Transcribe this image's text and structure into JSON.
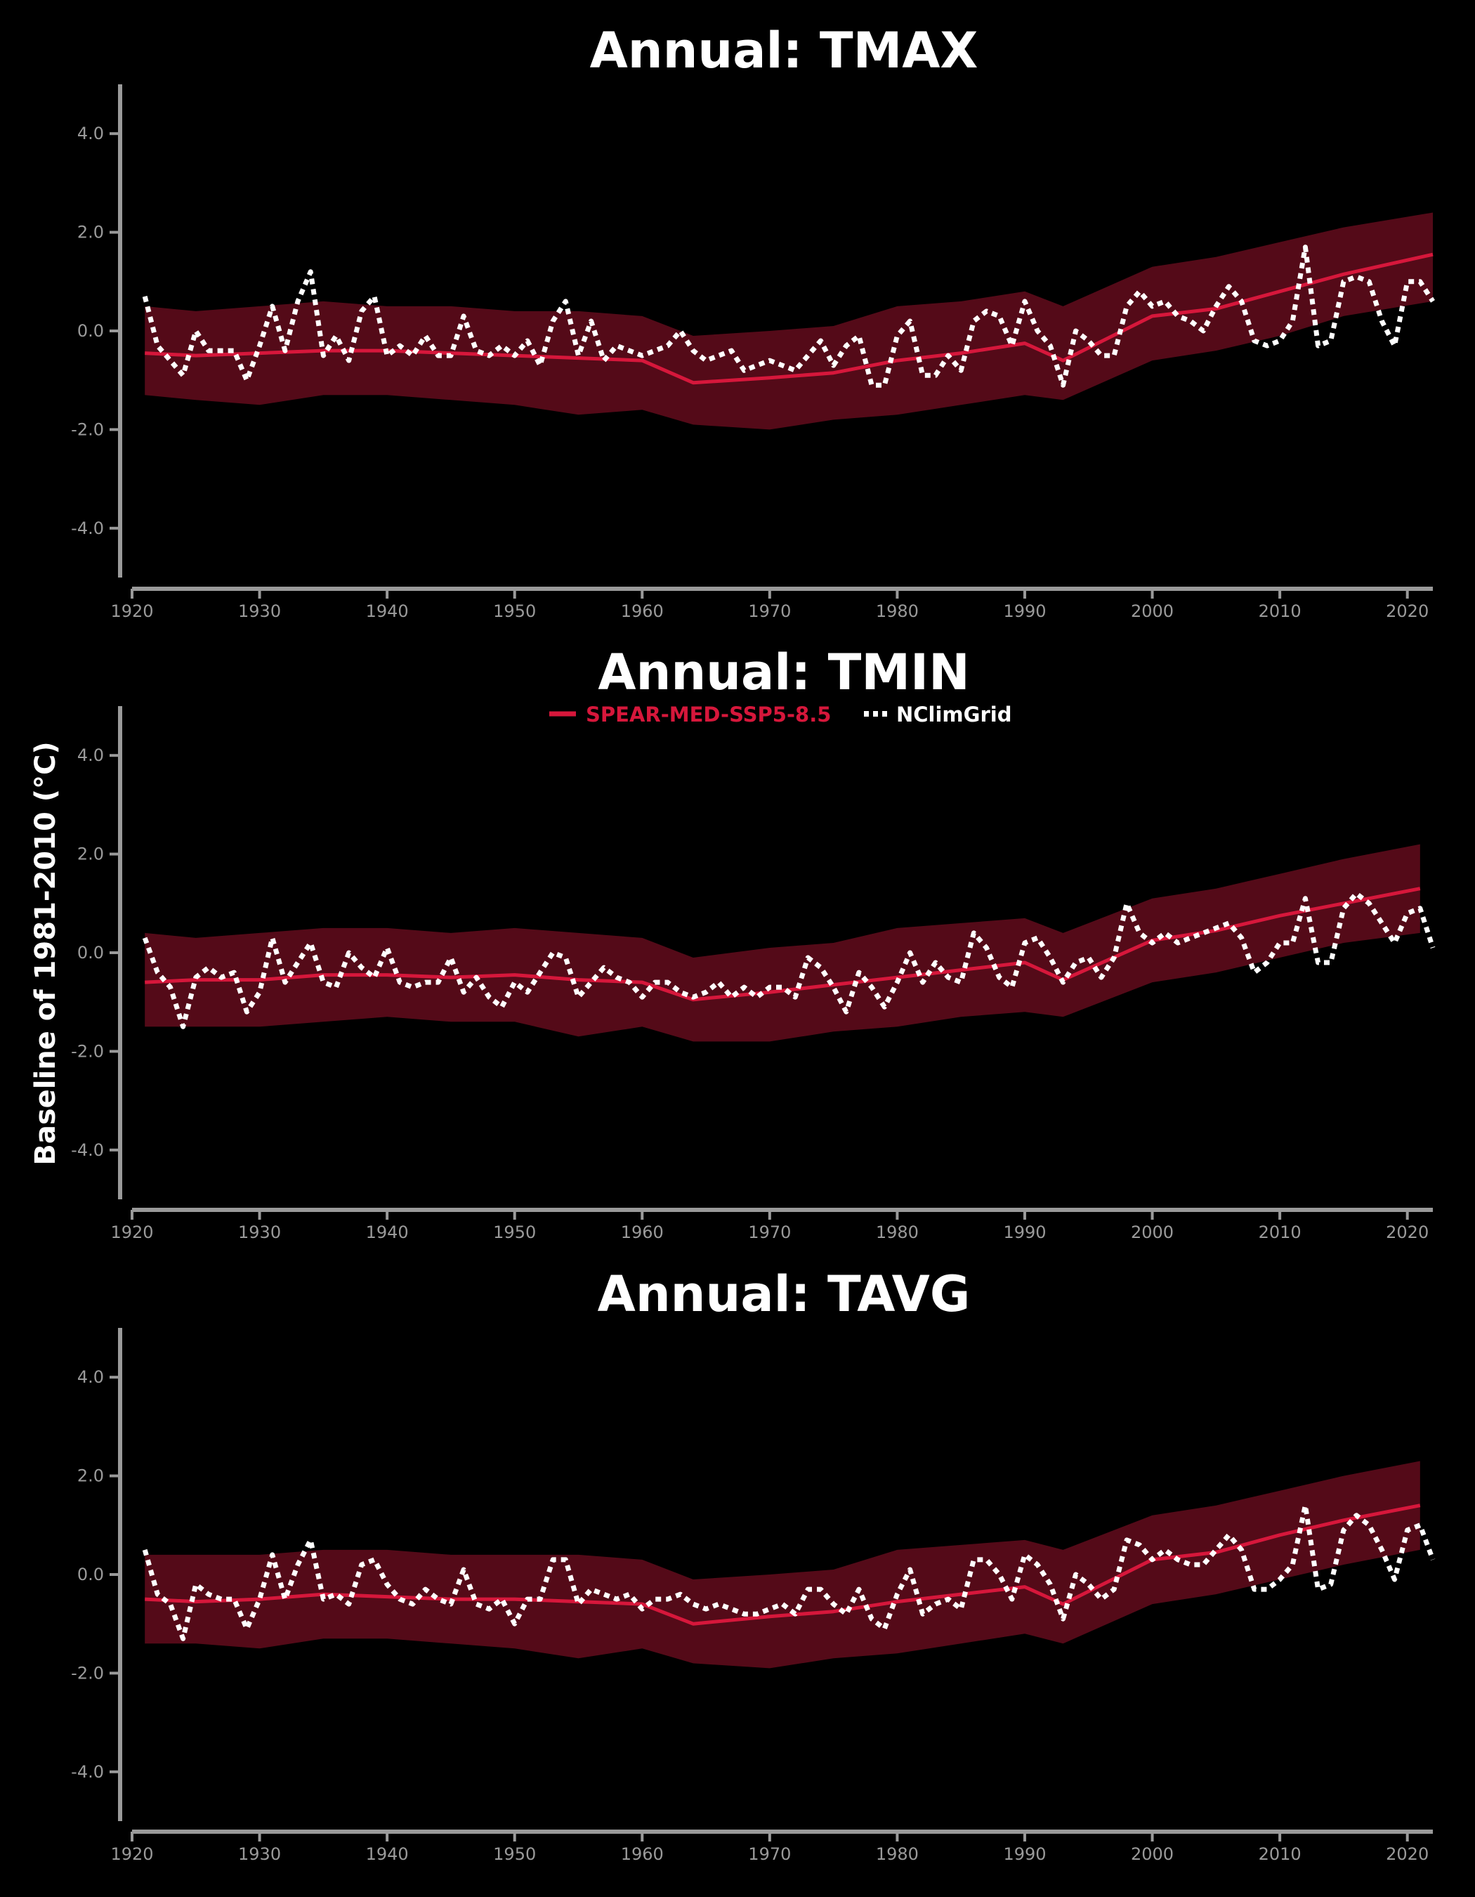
{
  "figure": {
    "ylabel": "Baseline of 1981-2010 (°C)",
    "legend": {
      "model_label": "SPEAR-MED-SSP5-8.5",
      "obs_label": "NClimGrid"
    },
    "colors": {
      "background": "#000000",
      "model_line": "#d6173b",
      "model_band": "#540a18",
      "obs_line": "#ffffff",
      "axis": "#9a9a9a"
    }
  },
  "chart_data": [
    {
      "type": "line",
      "title": "Annual: TMAX",
      "xlim": [
        1920,
        2022
      ],
      "ylim": [
        -5.0,
        5.0
      ],
      "xticks": [
        1920,
        1930,
        1940,
        1950,
        1960,
        1970,
        1980,
        1990,
        2000,
        2010,
        2020
      ],
      "yticks": [
        4.0,
        2.0,
        0.0,
        -2.0,
        -4.0
      ],
      "ytick_labels": [
        "4.0",
        "2.0",
        "0.0",
        "-2.0",
        "-4.0"
      ],
      "legend": null,
      "series": [
        {
          "name": "SPEAR-MED-SSP5-8.5",
          "style": "solid line with shaded ensemble range",
          "x": [
            1921,
            1925,
            1930,
            1935,
            1940,
            1945,
            1950,
            1955,
            1960,
            1964,
            1970,
            1975,
            1980,
            1985,
            1990,
            1993,
            2000,
            2005,
            2010,
            2015,
            2022
          ],
          "y": [
            -0.45,
            -0.5,
            -0.45,
            -0.4,
            -0.4,
            -0.45,
            -0.5,
            -0.55,
            -0.6,
            -1.05,
            -0.95,
            -0.85,
            -0.6,
            -0.45,
            -0.25,
            -0.6,
            0.3,
            0.45,
            0.8,
            1.15,
            1.55
          ],
          "lower": [
            -1.3,
            -1.4,
            -1.5,
            -1.3,
            -1.3,
            -1.4,
            -1.5,
            -1.7,
            -1.6,
            -1.9,
            -2.0,
            -1.8,
            -1.7,
            -1.5,
            -1.3,
            -1.4,
            -0.6,
            -0.4,
            -0.1,
            0.3,
            0.6
          ],
          "upper": [
            0.5,
            0.4,
            0.5,
            0.6,
            0.5,
            0.5,
            0.4,
            0.4,
            0.3,
            -0.1,
            0.0,
            0.1,
            0.5,
            0.6,
            0.8,
            0.5,
            1.3,
            1.5,
            1.8,
            2.1,
            2.4
          ]
        },
        {
          "name": "NClimGrid",
          "style": "dotted line",
          "x": [
            1921,
            1922,
            1923,
            1924,
            1925,
            1926,
            1927,
            1928,
            1929,
            1930,
            1931,
            1932,
            1933,
            1934,
            1935,
            1936,
            1937,
            1938,
            1939,
            1940,
            1941,
            1942,
            1943,
            1944,
            1945,
            1946,
            1947,
            1948,
            1949,
            1950,
            1951,
            1952,
            1953,
            1954,
            1955,
            1956,
            1957,
            1958,
            1959,
            1960,
            1961,
            1962,
            1963,
            1964,
            1965,
            1966,
            1967,
            1968,
            1969,
            1970,
            1971,
            1972,
            1973,
            1974,
            1975,
            1976,
            1977,
            1978,
            1979,
            1980,
            1981,
            1982,
            1983,
            1984,
            1985,
            1986,
            1987,
            1988,
            1989,
            1990,
            1991,
            1992,
            1993,
            1994,
            1995,
            1996,
            1997,
            1998,
            1999,
            2000,
            2001,
            2002,
            2003,
            2004,
            2005,
            2006,
            2007,
            2008,
            2009,
            2010,
            2011,
            2012,
            2013,
            2014,
            2015,
            2016,
            2017,
            2018,
            2019,
            2020,
            2021,
            2022
          ],
          "y": [
            0.7,
            -0.3,
            -0.6,
            -0.9,
            0.0,
            -0.4,
            -0.4,
            -0.4,
            -1.0,
            -0.3,
            0.5,
            -0.4,
            0.6,
            1.2,
            -0.5,
            -0.1,
            -0.6,
            0.4,
            0.7,
            -0.5,
            -0.3,
            -0.5,
            -0.1,
            -0.5,
            -0.5,
            0.3,
            -0.4,
            -0.5,
            -0.3,
            -0.5,
            -0.2,
            -0.7,
            0.2,
            0.6,
            -0.5,
            0.2,
            -0.6,
            -0.3,
            -0.4,
            -0.5,
            -0.4,
            -0.3,
            0.0,
            -0.4,
            -0.6,
            -0.5,
            -0.4,
            -0.8,
            -0.7,
            -0.6,
            -0.7,
            -0.8,
            -0.5,
            -0.2,
            -0.7,
            -0.3,
            -0.1,
            -1.1,
            -1.1,
            -0.1,
            0.2,
            -0.9,
            -0.9,
            -0.5,
            -0.8,
            0.2,
            0.4,
            0.3,
            -0.3,
            0.6,
            0.0,
            -0.3,
            -1.1,
            0.0,
            -0.2,
            -0.5,
            -0.5,
            0.5,
            0.8,
            0.5,
            0.6,
            0.3,
            0.2,
            0.0,
            0.5,
            0.9,
            0.6,
            -0.2,
            -0.3,
            -0.2,
            0.2,
            1.7,
            -0.3,
            -0.2,
            1.0,
            1.1,
            1.0,
            0.2,
            -0.3,
            1.0,
            1.0,
            0.6
          ]
        }
      ]
    },
    {
      "type": "line",
      "title": "Annual: TMIN",
      "xlim": [
        1920,
        2022
      ],
      "ylim": [
        -5.0,
        5.0
      ],
      "xticks": [
        1920,
        1930,
        1940,
        1950,
        1960,
        1970,
        1980,
        1990,
        2000,
        2010,
        2020
      ],
      "yticks": [
        4.0,
        2.0,
        0.0,
        -2.0,
        -4.0
      ],
      "ytick_labels": [
        "4.0",
        "2.0",
        "0.0",
        "-2.0",
        "-4.0"
      ],
      "legend": "top-center",
      "series": [
        {
          "name": "SPEAR-MED-SSP5-8.5",
          "style": "solid line with shaded ensemble range",
          "x": [
            1921,
            1925,
            1930,
            1935,
            1940,
            1945,
            1950,
            1955,
            1960,
            1964,
            1970,
            1975,
            1980,
            1985,
            1990,
            1993,
            2000,
            2005,
            2010,
            2015,
            2021
          ],
          "y": [
            -0.6,
            -0.55,
            -0.55,
            -0.45,
            -0.45,
            -0.5,
            -0.45,
            -0.55,
            -0.6,
            -0.95,
            -0.8,
            -0.65,
            -0.5,
            -0.35,
            -0.2,
            -0.55,
            0.25,
            0.45,
            0.75,
            1.0,
            1.3
          ],
          "lower": [
            -1.5,
            -1.5,
            -1.5,
            -1.4,
            -1.3,
            -1.4,
            -1.4,
            -1.7,
            -1.5,
            -1.8,
            -1.8,
            -1.6,
            -1.5,
            -1.3,
            -1.2,
            -1.3,
            -0.6,
            -0.4,
            -0.1,
            0.2,
            0.4
          ],
          "upper": [
            0.4,
            0.3,
            0.4,
            0.5,
            0.5,
            0.4,
            0.5,
            0.4,
            0.3,
            -0.1,
            0.1,
            0.2,
            0.5,
            0.6,
            0.7,
            0.4,
            1.1,
            1.3,
            1.6,
            1.9,
            2.2
          ]
        },
        {
          "name": "NClimGrid",
          "style": "dotted line",
          "x": [
            1921,
            1922,
            1923,
            1924,
            1925,
            1926,
            1927,
            1928,
            1929,
            1930,
            1931,
            1932,
            1933,
            1934,
            1935,
            1936,
            1937,
            1938,
            1939,
            1940,
            1941,
            1942,
            1943,
            1944,
            1945,
            1946,
            1947,
            1948,
            1949,
            1950,
            1951,
            1952,
            1953,
            1954,
            1955,
            1956,
            1957,
            1958,
            1959,
            1960,
            1961,
            1962,
            1963,
            1964,
            1965,
            1966,
            1967,
            1968,
            1969,
            1970,
            1971,
            1972,
            1973,
            1974,
            1975,
            1976,
            1977,
            1978,
            1979,
            1980,
            1981,
            1982,
            1983,
            1984,
            1985,
            1986,
            1987,
            1988,
            1989,
            1990,
            1991,
            1992,
            1993,
            1994,
            1995,
            1996,
            1997,
            1998,
            1999,
            2000,
            2001,
            2002,
            2003,
            2004,
            2005,
            2006,
            2007,
            2008,
            2009,
            2010,
            2011,
            2012,
            2013,
            2014,
            2015,
            2016,
            2017,
            2018,
            2019,
            2020,
            2021,
            2022
          ],
          "y": [
            0.3,
            -0.4,
            -0.7,
            -1.5,
            -0.5,
            -0.3,
            -0.5,
            -0.4,
            -1.2,
            -0.8,
            0.3,
            -0.6,
            -0.2,
            0.2,
            -0.6,
            -0.7,
            0.0,
            -0.3,
            -0.5,
            0.1,
            -0.6,
            -0.7,
            -0.6,
            -0.6,
            -0.1,
            -0.8,
            -0.5,
            -0.9,
            -1.1,
            -0.6,
            -0.8,
            -0.4,
            0.0,
            -0.1,
            -0.9,
            -0.6,
            -0.3,
            -0.5,
            -0.6,
            -0.9,
            -0.6,
            -0.6,
            -0.8,
            -0.9,
            -0.8,
            -0.6,
            -0.9,
            -0.7,
            -0.9,
            -0.7,
            -0.7,
            -0.9,
            -0.1,
            -0.3,
            -0.7,
            -1.2,
            -0.4,
            -0.7,
            -1.1,
            -0.6,
            0.0,
            -0.6,
            -0.2,
            -0.5,
            -0.6,
            0.4,
            0.1,
            -0.5,
            -0.7,
            0.2,
            0.3,
            -0.1,
            -0.6,
            -0.2,
            -0.1,
            -0.5,
            -0.1,
            1.0,
            0.4,
            0.2,
            0.4,
            0.2,
            0.3,
            0.4,
            0.5,
            0.6,
            0.3,
            -0.4,
            -0.2,
            0.2,
            0.2,
            1.1,
            -0.2,
            -0.2,
            0.9,
            1.2,
            1.0,
            0.6,
            0.2,
            0.8,
            0.9,
            0.1
          ]
        }
      ]
    },
    {
      "type": "line",
      "title": "Annual: TAVG",
      "xlim": [
        1920,
        2022
      ],
      "ylim": [
        -5.0,
        5.0
      ],
      "xticks": [
        1920,
        1930,
        1940,
        1950,
        1960,
        1970,
        1980,
        1990,
        2000,
        2010,
        2020
      ],
      "yticks": [
        4.0,
        2.0,
        0.0,
        -2.0,
        -4.0
      ],
      "ytick_labels": [
        "4.0",
        "2.0",
        "0.0",
        "-2.0",
        "-4.0"
      ],
      "legend": null,
      "series": [
        {
          "name": "SPEAR-MED-SSP5-8.5",
          "style": "solid line with shaded ensemble range",
          "x": [
            1921,
            1925,
            1930,
            1935,
            1940,
            1945,
            1950,
            1955,
            1960,
            1964,
            1970,
            1975,
            1980,
            1985,
            1990,
            1993,
            2000,
            2005,
            2010,
            2015,
            2021
          ],
          "y": [
            -0.5,
            -0.55,
            -0.5,
            -0.4,
            -0.45,
            -0.5,
            -0.5,
            -0.55,
            -0.6,
            -1.0,
            -0.85,
            -0.75,
            -0.55,
            -0.4,
            -0.25,
            -0.6,
            0.3,
            0.45,
            0.8,
            1.1,
            1.4
          ],
          "lower": [
            -1.4,
            -1.4,
            -1.5,
            -1.3,
            -1.3,
            -1.4,
            -1.5,
            -1.7,
            -1.5,
            -1.8,
            -1.9,
            -1.7,
            -1.6,
            -1.4,
            -1.2,
            -1.4,
            -0.6,
            -0.4,
            -0.1,
            0.2,
            0.5
          ],
          "upper": [
            0.4,
            0.4,
            0.4,
            0.5,
            0.5,
            0.4,
            0.4,
            0.4,
            0.3,
            -0.1,
            0.0,
            0.1,
            0.5,
            0.6,
            0.7,
            0.5,
            1.2,
            1.4,
            1.7,
            2.0,
            2.3
          ]
        },
        {
          "name": "NClimGrid",
          "style": "dotted line",
          "x": [
            1921,
            1922,
            1923,
            1924,
            1925,
            1926,
            1927,
            1928,
            1929,
            1930,
            1931,
            1932,
            1933,
            1934,
            1935,
            1936,
            1937,
            1938,
            1939,
            1940,
            1941,
            1942,
            1943,
            1944,
            1945,
            1946,
            1947,
            1948,
            1949,
            1950,
            1951,
            1952,
            1953,
            1954,
            1955,
            1956,
            1957,
            1958,
            1959,
            1960,
            1961,
            1962,
            1963,
            1964,
            1965,
            1966,
            1967,
            1968,
            1969,
            1970,
            1971,
            1972,
            1973,
            1974,
            1975,
            1976,
            1977,
            1978,
            1979,
            1980,
            1981,
            1982,
            1983,
            1984,
            1985,
            1986,
            1987,
            1988,
            1989,
            1990,
            1991,
            1992,
            1993,
            1994,
            1995,
            1996,
            1997,
            1998,
            1999,
            2000,
            2001,
            2002,
            2003,
            2004,
            2005,
            2006,
            2007,
            2008,
            2009,
            2010,
            2011,
            2012,
            2013,
            2014,
            2015,
            2016,
            2017,
            2018,
            2019,
            2020,
            2021,
            2022
          ],
          "y": [
            0.5,
            -0.4,
            -0.6,
            -1.3,
            -0.2,
            -0.4,
            -0.5,
            -0.5,
            -1.1,
            -0.5,
            0.4,
            -0.5,
            0.2,
            0.7,
            -0.5,
            -0.4,
            -0.6,
            0.2,
            0.3,
            -0.2,
            -0.5,
            -0.6,
            -0.3,
            -0.5,
            -0.6,
            0.1,
            -0.6,
            -0.7,
            -0.5,
            -1.0,
            -0.5,
            -0.5,
            0.3,
            0.3,
            -0.6,
            -0.3,
            -0.4,
            -0.5,
            -0.4,
            -0.7,
            -0.5,
            -0.5,
            -0.4,
            -0.6,
            -0.7,
            -0.6,
            -0.7,
            -0.8,
            -0.8,
            -0.7,
            -0.6,
            -0.8,
            -0.3,
            -0.3,
            -0.6,
            -0.8,
            -0.3,
            -0.9,
            -1.1,
            -0.4,
            0.1,
            -0.8,
            -0.6,
            -0.5,
            -0.7,
            0.3,
            0.3,
            0.0,
            -0.5,
            0.4,
            0.2,
            -0.2,
            -0.9,
            0.0,
            -0.2,
            -0.5,
            -0.3,
            0.7,
            0.6,
            0.3,
            0.5,
            0.3,
            0.2,
            0.2,
            0.5,
            0.8,
            0.5,
            -0.3,
            -0.3,
            -0.1,
            0.2,
            1.4,
            -0.3,
            -0.2,
            0.9,
            1.2,
            1.0,
            0.5,
            -0.1,
            0.9,
            1.0,
            0.3
          ]
        }
      ]
    }
  ]
}
